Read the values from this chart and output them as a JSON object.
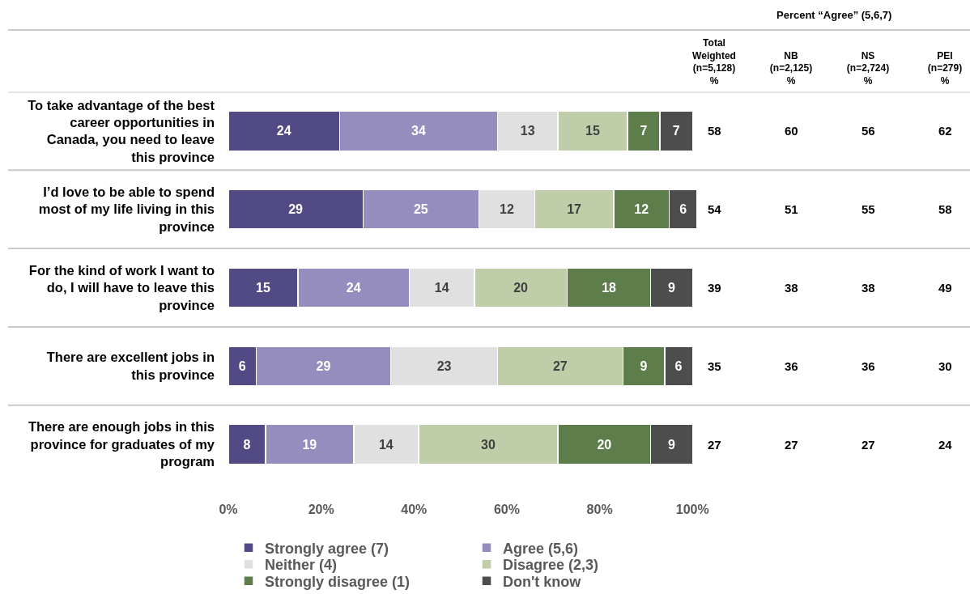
{
  "chart_data": [
    {
      "type": "bar",
      "orientation": "horizontal",
      "stacked": true,
      "data_labels": true,
      "legend": "bottom",
      "categories": [
        "To take advantage of the best\ncareer opportunities in\nCanada, you need to leave\nthis province",
        "I’d love to be able to spend\nmost of my life living in this\nprovince",
        "For the kind of work I want to\ndo, I will have to leave this\nprovince",
        "There are excellent jobs in\nthis province",
        "There are enough jobs in this\nprovince for graduates of my\nprogram"
      ],
      "series": [
        {
          "name": "Strongly agree (7)",
          "color": "#524a84",
          "values": [
            24,
            29,
            15,
            6,
            8
          ]
        },
        {
          "name": "Agree (5,6)",
          "color": "#948dbd",
          "values": [
            34,
            25,
            24,
            29,
            19
          ]
        },
        {
          "name": "Neither (4)",
          "color": "#e0e0e0",
          "values": [
            13,
            12,
            14,
            23,
            14
          ]
        },
        {
          "name": "Disagree (2,3)",
          "color": "#bfcea9",
          "values": [
            15,
            17,
            20,
            27,
            30
          ]
        },
        {
          "name": "Strongly disagree (1)",
          "color": "#5d7d4a",
          "values": [
            7,
            12,
            18,
            9,
            20
          ]
        },
        {
          "name": "Don't know",
          "color": "#4d4d4d",
          "values": [
            7,
            6,
            9,
            6,
            9
          ]
        }
      ],
      "xlim": [
        0,
        101
      ],
      "xticks": [
        {
          "value": 0,
          "label": "0%"
        },
        {
          "value": 20,
          "label": "20%"
        },
        {
          "value": 40,
          "label": "40%"
        },
        {
          "value": 60,
          "label": "60%"
        },
        {
          "value": 80,
          "label": "80%"
        },
        {
          "value": 100,
          "label": "100%"
        }
      ]
    },
    {
      "type": "other",
      "title": "Percent “Agree” (5,6,7)",
      "categories": [
        "Total\nWeighted\n(n=5,128)\n%",
        "NB\n(n=2,125)\n%",
        "NS\n(n=2,724)\n%",
        "PEI\n(n=279)\n%"
      ],
      "annotations": [
        "58",
        "60",
        "56",
        "62",
        "54",
        "51",
        "55",
        "58",
        "39",
        "38",
        "38",
        "49",
        "35",
        "36",
        "36",
        "30",
        "27",
        "27",
        "27",
        "24"
      ]
    }
  ]
}
